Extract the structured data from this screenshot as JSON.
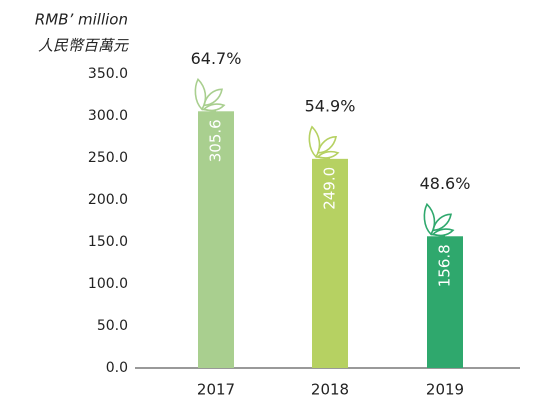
{
  "chart_data": {
    "type": "bar",
    "y_axis_label": [
      "RMB’ million",
      "人民幣百萬元"
    ],
    "categories": [
      "2017",
      "2018",
      "2019"
    ],
    "values": [
      305.6,
      249.0,
      156.8
    ],
    "value_labels": [
      "305.6",
      "249.0",
      "156.8"
    ],
    "percent_labels": [
      "64.7%",
      "54.9%",
      "48.6%"
    ],
    "colors": [
      "#a9cf8f",
      "#b6d162",
      "#2fa86d"
    ],
    "ylim": [
      0,
      350
    ],
    "yticks": [
      {
        "value": 0,
        "label": "0.0"
      },
      {
        "value": 50,
        "label": "50.0"
      },
      {
        "value": 100,
        "label": "100.0"
      },
      {
        "value": 150,
        "label": "150.0"
      },
      {
        "value": 200,
        "label": "200.0"
      },
      {
        "value": 250,
        "label": "250.0"
      },
      {
        "value": 300,
        "label": "300.0"
      },
      {
        "value": 350,
        "label": "350.0"
      }
    ],
    "grid": false
  }
}
